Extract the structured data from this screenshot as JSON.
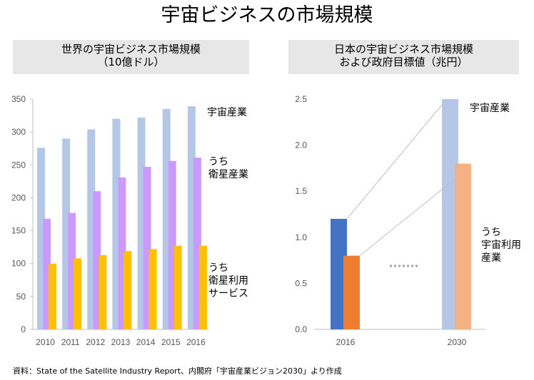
{
  "title": "宇宙ビジネスの市場規模",
  "footnote": "資料：State of the Satellite Industry Report、内閣府「宇宙産業ビジョン2030」より作成",
  "chart_data": [
    {
      "type": "bar",
      "title_lines": [
        "世界の宇宙ビジネス市場規模",
        "（10億ドル）"
      ],
      "categories": [
        "2010",
        "2011",
        "2012",
        "2013",
        "2014",
        "2015",
        "2016"
      ],
      "ylim": [
        0,
        350
      ],
      "yticks": [
        "0",
        "50",
        "100",
        "150",
        "200",
        "250",
        "300",
        "350"
      ],
      "series": [
        {
          "name": "宇宙産業",
          "color": "#b4c7e7",
          "values": [
            276,
            290,
            304,
            320,
            322,
            335,
            339
          ]
        },
        {
          "name": "うち 衛星産業",
          "color": "#cc99ff",
          "values": [
            168,
            177,
            210,
            231,
            247,
            256,
            261
          ]
        },
        {
          "name": "うち 衛星利用 サービス",
          "color": "#ffc000",
          "values": [
            100,
            108,
            113,
            119,
            122,
            127,
            127
          ]
        }
      ],
      "labels": {
        "space": [
          "宇宙産業"
        ],
        "satellite": [
          "うち",
          "衛星産業"
        ],
        "service": [
          "うち",
          "衛星利用",
          "サービス"
        ]
      },
      "grid": false
    },
    {
      "type": "bar",
      "title_lines": [
        "日本の宇宙ビジネス市場規模",
        "および政府目標値（兆円）"
      ],
      "categories": [
        "2016",
        "2030"
      ],
      "ylim": [
        0,
        2.5
      ],
      "yticks": [
        "0.0",
        "0.5",
        "1.0",
        "1.5",
        "2.0",
        "2.5"
      ],
      "series": [
        {
          "name": "宇宙産業",
          "colors": [
            "#4472c4",
            "#b4c7e7"
          ],
          "values": [
            1.2,
            2.5
          ]
        },
        {
          "name": "うち 宇宙利用 産業",
          "colors": [
            "#ed7d31",
            "#f4b183"
          ],
          "values": [
            0.8,
            1.8
          ]
        }
      ],
      "labels": {
        "space": [
          "宇宙産業"
        ],
        "usage": [
          "うち",
          "宇宙利用",
          "産業"
        ]
      },
      "grid": false
    }
  ]
}
